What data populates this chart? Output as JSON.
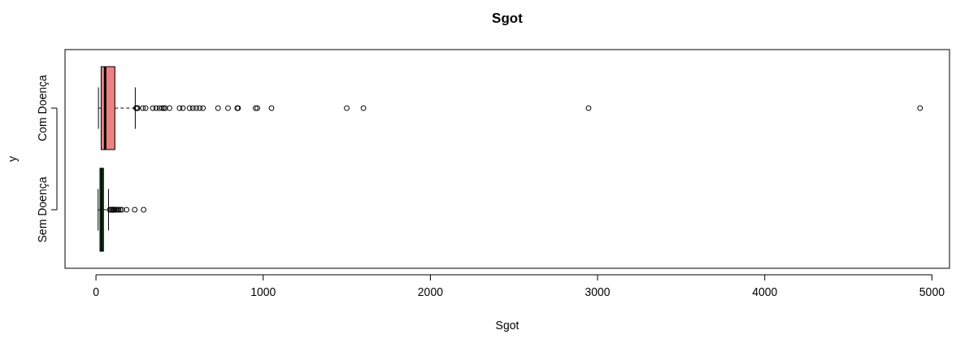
{
  "chart_data": {
    "type": "box",
    "title": "Sgot",
    "xlabel": "Sgot",
    "ylabel": "y",
    "orientation": "horizontal",
    "categories": [
      "Com Doença",
      "Sem Doença"
    ],
    "colors": [
      "#f08080",
      "#3cb44b"
    ],
    "boxes": [
      {
        "low": 15,
        "q1": 31,
        "median": 55,
        "q3": 113,
        "high": 235,
        "outliers": [
          240,
          245,
          250,
          280,
          297,
          340,
          360,
          380,
          395,
          405,
          413,
          440,
          500,
          520,
          560,
          580,
          600,
          620,
          640,
          730,
          790,
          845,
          850,
          955,
          965,
          1050,
          1500,
          1600,
          2946,
          4929
        ]
      },
      {
        "low": 13,
        "q1": 24,
        "median": 34,
        "q3": 45,
        "high": 75,
        "outliers": [
          82,
          88,
          95,
          100,
          105,
          110,
          118,
          125,
          135,
          145,
          155,
          183,
          232,
          285
        ]
      }
    ],
    "xlim": [
      -185,
      5105
    ],
    "xticks": [
      0,
      1000,
      2000,
      3000,
      4000,
      5000
    ],
    "grid": false
  }
}
